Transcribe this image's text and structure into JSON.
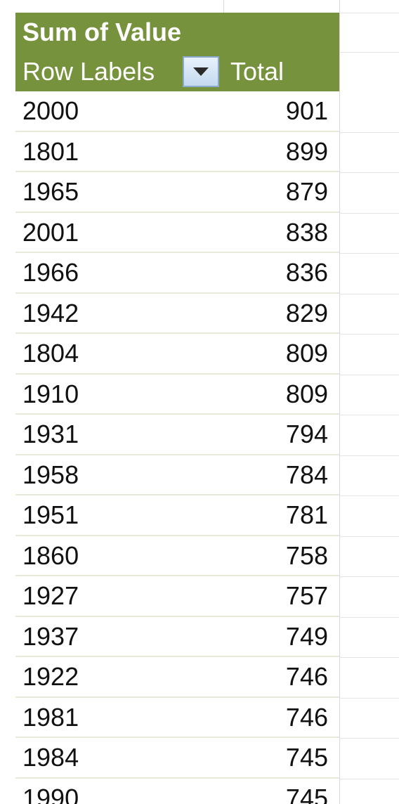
{
  "pivot": {
    "title": "Sum of Value",
    "row_labels_header": "Row Labels",
    "total_header": "Total",
    "filter_icon": "dropdown-arrow-icon",
    "header_bg": "#76923c",
    "rows": [
      {
        "label": "2000",
        "total": "901"
      },
      {
        "label": "1801",
        "total": "899"
      },
      {
        "label": "1965",
        "total": "879"
      },
      {
        "label": "2001",
        "total": "838"
      },
      {
        "label": "1966",
        "total": "836"
      },
      {
        "label": "1942",
        "total": "829"
      },
      {
        "label": "1804",
        "total": "809"
      },
      {
        "label": "1910",
        "total": "809"
      },
      {
        "label": "1931",
        "total": "794"
      },
      {
        "label": "1958",
        "total": "784"
      },
      {
        "label": "1951",
        "total": "781"
      },
      {
        "label": "1860",
        "total": "758"
      },
      {
        "label": "1927",
        "total": "757"
      },
      {
        "label": "1937",
        "total": "749"
      },
      {
        "label": "1922",
        "total": "746"
      },
      {
        "label": "1981",
        "total": "746"
      },
      {
        "label": "1984",
        "total": "745"
      },
      {
        "label": "1990",
        "total": "745"
      }
    ]
  }
}
